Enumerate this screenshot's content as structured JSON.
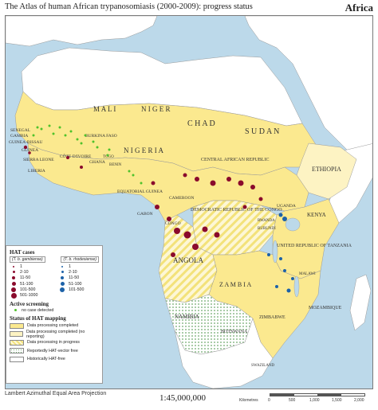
{
  "header": {
    "title": "The Atlas of human African trypanosomiasis (2000-2009): progress status",
    "region": "Africa"
  },
  "colors": {
    "ocean": "#bcd9ea",
    "completed": "#fbe98f",
    "no_reporting": "#fdf3c3",
    "in_progress_stripe": "#f3e27a",
    "vector_free": "#9fc89a",
    "hat_free": "#ffffff",
    "gambiense": "#8a0a2c",
    "rhodesiense": "#1d62a8",
    "active_screening": "#4fc22b"
  },
  "countries": [
    {
      "id": "mali",
      "label": "M A L I"
    },
    {
      "id": "niger",
      "label": "N I G E R"
    },
    {
      "id": "chad",
      "label": "C H A D"
    },
    {
      "id": "sudan",
      "label": "S U D A N"
    },
    {
      "id": "senegal",
      "label": "SENEGAL"
    },
    {
      "id": "gambia",
      "label": "GAMBIA"
    },
    {
      "id": "guinea_bissau",
      "label": "GUINEA-BISSAU"
    },
    {
      "id": "guinea",
      "label": "GUINEA"
    },
    {
      "id": "sierra_leone",
      "label": "SIERRA LEONE"
    },
    {
      "id": "liberia",
      "label": "LIBERIA"
    },
    {
      "id": "cote_divoire",
      "label": "CÔTE D'IVOIRE"
    },
    {
      "id": "burkina_faso",
      "label": "BURKINA FASO"
    },
    {
      "id": "ghana",
      "label": "GHANA"
    },
    {
      "id": "togo",
      "label": "TOGO"
    },
    {
      "id": "benin",
      "label": "BENIN"
    },
    {
      "id": "nigeria",
      "label": "N I G E R I A"
    },
    {
      "id": "car",
      "label": "CENTRAL AFRICAN REPUBLIC"
    },
    {
      "id": "ethiopia",
      "label": "ETHIOPIA"
    },
    {
      "id": "cameroon",
      "label": "CAMEROON"
    },
    {
      "id": "equatorial_guinea",
      "label": "EQUATORIAL GUINEA"
    },
    {
      "id": "gabon",
      "label": "GABON"
    },
    {
      "id": "congo",
      "label": "CONGO"
    },
    {
      "id": "drc",
      "label": "DEMOCRATIC REPUBLIC OF THE CONGO"
    },
    {
      "id": "uganda",
      "label": "UGANDA"
    },
    {
      "id": "kenya",
      "label": "KENYA"
    },
    {
      "id": "rwanda",
      "label": "RWANDA"
    },
    {
      "id": "burundi",
      "label": "BURUNDI"
    },
    {
      "id": "tanzania",
      "label": "UNITED REPUBLIC OF TANZANIA"
    },
    {
      "id": "angola",
      "label": "ANGOLA"
    },
    {
      "id": "zambia",
      "label": "Z A M B I A"
    },
    {
      "id": "malawi",
      "label": "MALAWI"
    },
    {
      "id": "mozambique",
      "label": "MOZAMBIQUE"
    },
    {
      "id": "zimbabwe",
      "label": "ZIMBABWE"
    },
    {
      "id": "namibia",
      "label": "NAMIBIA"
    },
    {
      "id": "botswana",
      "label": "BOTSWANA"
    },
    {
      "id": "swaziland",
      "label": "SWAZILAND"
    }
  ],
  "legend": {
    "cases_title": "HAT cases",
    "col_gambiense": "(T. b. gambiense)",
    "col_rhodesiense": "(T. b. rhodesiense)",
    "gambiense_classes": [
      "1",
      "2-10",
      "11-50",
      "51-100",
      "101-500",
      "501-1000"
    ],
    "rhodesiense_classes": [
      "1",
      "2-10",
      "11-50",
      "51-100",
      "101-500"
    ],
    "screening_title": "Active screening",
    "screening_item": "no case detected",
    "mapping_title": "Status of HAT mapping",
    "mapping_items": [
      {
        "key": "completed",
        "label": "Data processing completed"
      },
      {
        "key": "no_reporting",
        "label": "Data processing completed (no reporting)"
      },
      {
        "key": "in_progress",
        "label": "Data processing in progress"
      },
      {
        "key": "vector_free",
        "label": "Reportedly HAT-vector free"
      },
      {
        "key": "hat_free",
        "label": "Historically HAT-free"
      }
    ]
  },
  "footer": {
    "projection": "Lambert Azimuthal Equal Area Projection",
    "scale": "1:45,000,000",
    "scalebar_label": "Kilometres",
    "scalebar_ticks": [
      "0",
      "500",
      "1,000",
      "1,500",
      "2,000"
    ]
  }
}
